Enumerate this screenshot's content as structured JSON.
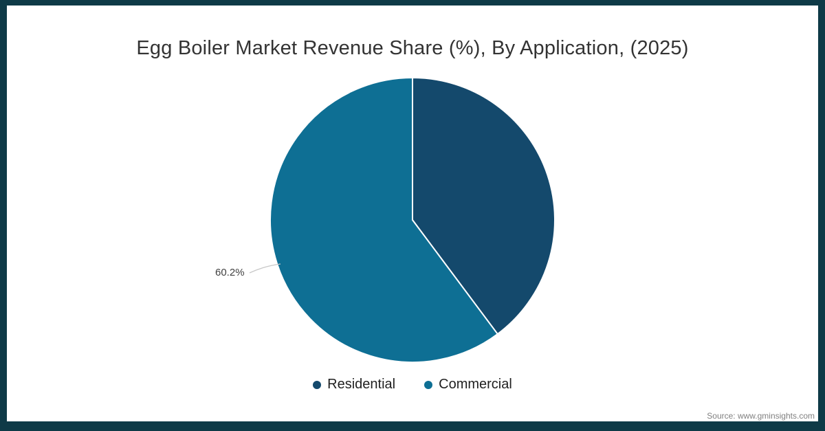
{
  "frame": {
    "border_color": "#0e3a47"
  },
  "title": "Egg Boiler Market Revenue Share (%), By Application, (2025)",
  "chart_data": {
    "type": "pie",
    "title": "Egg Boiler Market Revenue Share (%), By Application, (2025)",
    "start_angle_deg": 0,
    "direction": "clockwise",
    "slices": [
      {
        "label": "Residential",
        "value": 39.8,
        "color": "#14496c"
      },
      {
        "label": "Commercial",
        "value": 60.2,
        "color": "#0e6f94"
      }
    ],
    "data_labels": [
      {
        "slice": "Commercial",
        "text": "60.2%",
        "position": "outside-left"
      }
    ],
    "legend_position": "bottom",
    "slice_border_color": "#ffffff"
  },
  "annotation": {
    "value_label": "60.2%"
  },
  "legend": {
    "items": [
      {
        "label": "Residential",
        "color": "#14496c"
      },
      {
        "label": "Commercial",
        "color": "#0e6f94"
      }
    ]
  },
  "source": "Source: www.gminsights.com"
}
